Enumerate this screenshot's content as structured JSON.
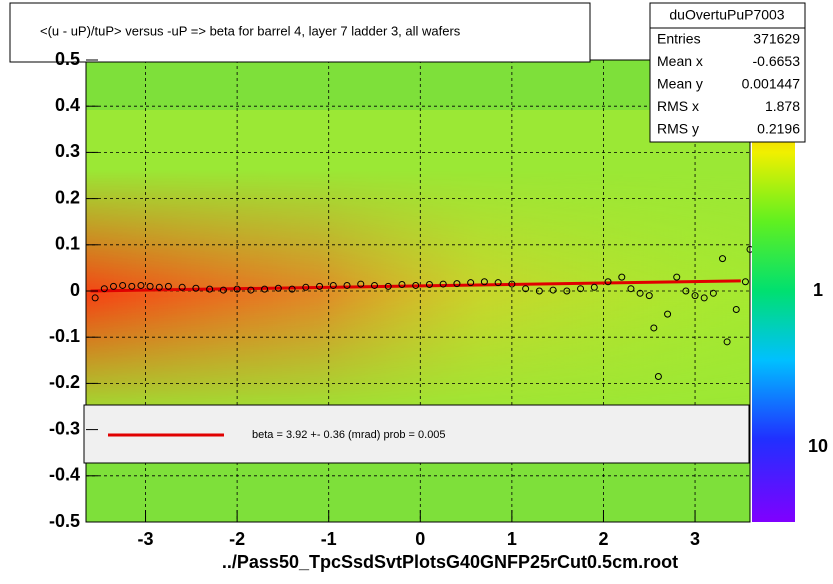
{
  "chart_data": {
    "type": "scatter",
    "title": "<(u - uP)/tuP>  versus  -uP => beta for barrel 4, layer 7 ladder 3, all wafers",
    "x_label": "../Pass50_TpcSsdSvtPlotsG40GNFP25rCut0.5cm.root",
    "xlim": [
      -3.65,
      3.6
    ],
    "ylim": [
      -0.5,
      0.5
    ],
    "xticks": [
      -3,
      -2,
      -1,
      0,
      1,
      2,
      3
    ],
    "yticks": [
      -0.5,
      -0.4,
      -0.3,
      -0.2,
      -0.1,
      0,
      0.1,
      0.2,
      0.3,
      0.4,
      0.5
    ],
    "grid": true,
    "series": [
      {
        "color": "#000000",
        "x": [
          -3.55,
          -3.45,
          -3.35,
          -3.25,
          -3.15,
          -3.05,
          -2.95,
          -2.85,
          -2.75,
          -2.6,
          -2.45,
          -2.3,
          -2.15,
          -2.0,
          -1.85,
          -1.7,
          -1.55,
          -1.4,
          -1.25,
          -1.1,
          -0.95,
          -0.8,
          -0.65,
          -0.5,
          -0.35,
          -0.2,
          -0.05,
          0.1,
          0.25,
          0.4,
          0.55,
          0.7,
          0.85,
          1.0,
          1.15,
          1.3,
          1.45,
          1.6,
          1.75,
          1.9,
          2.05,
          2.2,
          2.3,
          2.4,
          2.5,
          2.55,
          2.6,
          2.7,
          2.8,
          2.9,
          3.0,
          3.1,
          3.2,
          3.3,
          3.35,
          3.45,
          3.55,
          3.6
        ],
        "values": [
          -0.015,
          0.005,
          0.01,
          0.012,
          0.01,
          0.012,
          0.01,
          0.008,
          0.01,
          0.008,
          0.006,
          0.004,
          0.002,
          0.004,
          0.002,
          0.004,
          0.006,
          0.004,
          0.008,
          0.01,
          0.012,
          0.012,
          0.015,
          0.012,
          0.01,
          0.014,
          0.012,
          0.014,
          0.015,
          0.016,
          0.018,
          0.02,
          0.018,
          0.015,
          0.005,
          0.0,
          0.002,
          0.0,
          0.005,
          0.008,
          0.02,
          0.03,
          0.005,
          -0.005,
          -0.01,
          -0.08,
          -0.185,
          -0.05,
          0.03,
          0.0,
          -0.01,
          -0.015,
          -0.005,
          0.07,
          -0.11,
          -0.04,
          0.02,
          0.09
        ]
      }
    ],
    "fit": {
      "color": "#e00000",
      "x": [
        -3.6,
        3.5
      ],
      "values": [
        0.0,
        0.022
      ]
    },
    "legend_text": "beta =    3.92 +-  0.36 (mrad) prob = 0.005",
    "stats": {
      "name": "duOvertuPuP7003",
      "rows": [
        [
          "Entries",
          371629
        ],
        [
          "Mean x",
          -0.6653
        ],
        [
          "Mean y",
          0.001447
        ],
        [
          "RMS x",
          1.878
        ],
        [
          "RMS y",
          0.2196
        ]
      ]
    },
    "colorbar_labels": [
      "1",
      "10"
    ]
  }
}
